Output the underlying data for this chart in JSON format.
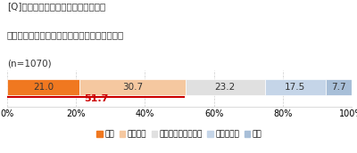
{
  "title_line1": "[Q]コロナ禍での「マスク生活」で、",
  "title_line2": "ご自分の肌に変化を感じることがありますか？",
  "sample_size": "(n=1070)",
  "legend_labels": [
    "ある",
    "ややある",
    "どちらともいえない",
    "あまりない",
    "ない"
  ],
  "values": [
    21.0,
    30.7,
    23.2,
    17.5,
    7.7
  ],
  "bar_texts": [
    "21.0",
    "30.7",
    "23.2",
    "17.5",
    "7.7"
  ],
  "colors": [
    "#f07820",
    "#f5c8a0",
    "#e0e0e0",
    "#c5d5e8",
    "#a8bfd8"
  ],
  "combined_label": "51.7",
  "xlim": [
    0,
    100
  ],
  "tick_positions": [
    0,
    20,
    40,
    60,
    80,
    100
  ],
  "tick_labels": [
    "0%",
    "20%",
    "40%",
    "60%",
    "80%",
    "100%"
  ],
  "annotation_color": "#cc0000",
  "background_color": "#ffffff",
  "bar_edge_color": "#ffffff"
}
